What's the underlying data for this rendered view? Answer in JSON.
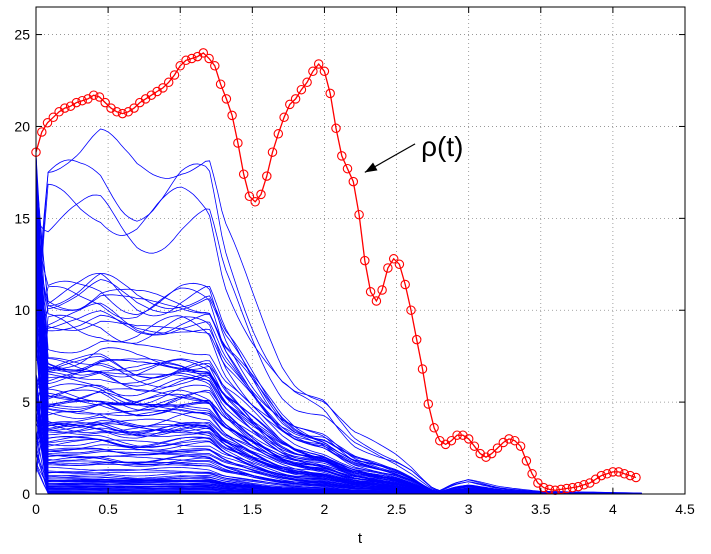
{
  "chart_data": {
    "type": "line",
    "xlabel": "t",
    "ylabel": "",
    "xlim": [
      0,
      4.5
    ],
    "ylim": [
      0,
      26.5
    ],
    "xticks": [
      0,
      0.5,
      1,
      1.5,
      2,
      2.5,
      3,
      3.5,
      4,
      4.5
    ],
    "xtick_labels": [
      "0",
      "0.5",
      "1",
      "1.5",
      "2",
      "2.5",
      "3",
      "3.5",
      "4",
      "4.5"
    ],
    "yticks": [
      0,
      5,
      10,
      15,
      20,
      25
    ],
    "ytick_labels": [
      "0",
      "5",
      "10",
      "15",
      "20",
      "25"
    ],
    "grid": true,
    "annotation": {
      "text": "ρ(t)",
      "points_to": [
        2.28,
        17.5
      ],
      "text_at": [
        2.67,
        18.4
      ]
    },
    "colors": {
      "rho": "#ff0000",
      "family": "#0000ff"
    },
    "rho_series": {
      "marker": "circle",
      "x": [
        0,
        0.04,
        0.08,
        0.12,
        0.16,
        0.2,
        0.24,
        0.28,
        0.32,
        0.36,
        0.4,
        0.44,
        0.48,
        0.52,
        0.56,
        0.6,
        0.64,
        0.68,
        0.72,
        0.76,
        0.8,
        0.84,
        0.88,
        0.92,
        0.96,
        1.0,
        1.04,
        1.08,
        1.12,
        1.16,
        1.2,
        1.24,
        1.28,
        1.32,
        1.36,
        1.4,
        1.44,
        1.48,
        1.52,
        1.56,
        1.6,
        1.64,
        1.68,
        1.72,
        1.76,
        1.8,
        1.84,
        1.88,
        1.92,
        1.96,
        2.0,
        2.04,
        2.08,
        2.12,
        2.16,
        2.2,
        2.24,
        2.28,
        2.32,
        2.36,
        2.4,
        2.44,
        2.48,
        2.52,
        2.56,
        2.6,
        2.64,
        2.68,
        2.72,
        2.76,
        2.8,
        2.84,
        2.88,
        2.92,
        2.96,
        3.0,
        3.04,
        3.08,
        3.12,
        3.16,
        3.2,
        3.24,
        3.28,
        3.32,
        3.36,
        3.4,
        3.44,
        3.48,
        3.52,
        3.56,
        3.6,
        3.64,
        3.68,
        3.72,
        3.76,
        3.8,
        3.84,
        3.88,
        3.92,
        3.96,
        4.0,
        4.04,
        4.08,
        4.12,
        4.16
      ],
      "y": [
        18.6,
        19.7,
        20.2,
        20.5,
        20.8,
        21.0,
        21.1,
        21.3,
        21.4,
        21.5,
        21.7,
        21.6,
        21.3,
        21.0,
        20.8,
        20.7,
        20.8,
        21.0,
        21.3,
        21.5,
        21.7,
        21.9,
        22.1,
        22.4,
        22.8,
        23.3,
        23.6,
        23.7,
        23.8,
        24.0,
        23.7,
        23.3,
        22.3,
        21.5,
        20.6,
        19.1,
        17.4,
        16.2,
        15.9,
        16.3,
        17.3,
        18.6,
        19.6,
        20.5,
        21.2,
        21.5,
        22.0,
        22.4,
        23.0,
        23.4,
        23.0,
        21.8,
        19.9,
        18.4,
        17.7,
        17.0,
        15.2,
        12.7,
        11.0,
        10.5,
        11.1,
        12.3,
        12.8,
        12.5,
        11.4,
        10.0,
        8.4,
        6.8,
        4.9,
        3.6,
        2.9,
        2.7,
        2.9,
        3.2,
        3.2,
        3.0,
        2.6,
        2.2,
        2.0,
        2.2,
        2.5,
        2.8,
        3.0,
        2.9,
        2.6,
        1.8,
        1.1,
        0.6,
        0.35,
        0.25,
        0.2,
        0.25,
        0.3,
        0.35,
        0.4,
        0.5,
        0.6,
        0.8,
        1.0,
        1.1,
        1.2,
        1.2,
        1.1,
        1.0,
        0.9
      ]
    },
    "family_series": {
      "count": 130,
      "x_end": 4.2,
      "top_curve": {
        "x": [
          0,
          0.06,
          0.2,
          0.3,
          0.4,
          0.45,
          0.5,
          0.6,
          0.7,
          0.8,
          0.9,
          1.0,
          1.1,
          1.2,
          1.25,
          1.3,
          1.4,
          1.5,
          1.6,
          1.7,
          1.8,
          1.9,
          2.0,
          2.1,
          2.2,
          2.3,
          2.4,
          2.5,
          2.6,
          2.7,
          2.75,
          2.8,
          2.9,
          3.0,
          3.1,
          3.2,
          3.3,
          3.5,
          4.2
        ],
        "y": [
          18.3,
          18.5,
          18.6,
          18.6,
          18.9,
          19.0,
          18.7,
          18.0,
          17.6,
          17.7,
          18.0,
          18.4,
          18.4,
          18.3,
          16.5,
          14.5,
          12.5,
          10.5,
          8.7,
          7.1,
          6.1,
          5.6,
          5.2,
          4.2,
          3.3,
          2.9,
          2.5,
          2.1,
          1.5,
          0.7,
          0.35,
          0.2,
          0.6,
          0.8,
          0.6,
          0.4,
          0.3,
          0.15,
          0.05
        ]
      }
    }
  }
}
